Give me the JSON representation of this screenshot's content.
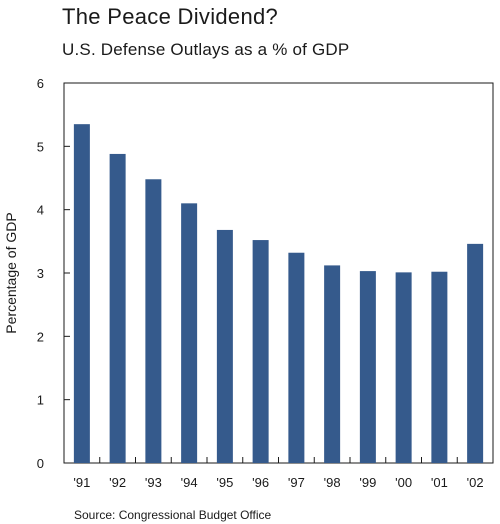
{
  "title": "The Peace Dividend?",
  "subtitle": "U.S. Defense Outlays as a % of GDP",
  "source": "Source: Congressional Budget Office",
  "chart_data": {
    "type": "bar",
    "categories": [
      "'91",
      "'92",
      "'93",
      "'94",
      "'95",
      "'96",
      "'97",
      "'98",
      "'99",
      "'00",
      "'01",
      "'02"
    ],
    "values": [
      5.35,
      4.88,
      4.48,
      4.1,
      3.68,
      3.52,
      3.32,
      3.12,
      3.03,
      3.01,
      3.02,
      3.46
    ],
    "ylabel": "Percentage of GDP",
    "ylim": [
      0,
      6
    ],
    "yticks": [
      0,
      1,
      2,
      3,
      4,
      5,
      6
    ],
    "bar_color": "#355a8c",
    "grid": false
  }
}
